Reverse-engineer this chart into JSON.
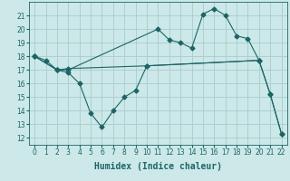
{
  "xlabel": "Humidex (Indice chaleur)",
  "bg_color": "#cce8e8",
  "grid_color": "#aacccc",
  "line_color": "#1a6666",
  "xlim": [
    -0.5,
    22.5
  ],
  "ylim": [
    11.5,
    22.0
  ],
  "xticks": [
    0,
    1,
    2,
    3,
    4,
    5,
    6,
    7,
    8,
    9,
    10,
    11,
    12,
    13,
    14,
    15,
    16,
    17,
    18,
    19,
    20,
    21,
    22
  ],
  "yticks": [
    12,
    13,
    14,
    15,
    16,
    17,
    18,
    19,
    20,
    21
  ],
  "line1_x": [
    0,
    1,
    2,
    3,
    11,
    12,
    13,
    14,
    15,
    16,
    17,
    18,
    19,
    20,
    21,
    22
  ],
  "line1_y": [
    18.0,
    17.7,
    17.0,
    17.0,
    20.0,
    19.2,
    19.0,
    18.6,
    21.1,
    21.5,
    21.0,
    19.5,
    19.3,
    17.7,
    15.2,
    12.3
  ],
  "line2_x": [
    0,
    2,
    3,
    10,
    20
  ],
  "line2_y": [
    18.0,
    17.0,
    17.1,
    17.3,
    17.7
  ],
  "line3_x": [
    0,
    2,
    3,
    4,
    5,
    6,
    7,
    8,
    9,
    10,
    20,
    21,
    22
  ],
  "line3_y": [
    18.0,
    17.0,
    16.8,
    16.0,
    13.8,
    12.8,
    14.0,
    15.0,
    15.5,
    17.3,
    17.7,
    15.2,
    12.3
  ],
  "marker": "D",
  "markersize": 2.5,
  "linewidth": 0.8,
  "xlabel_fontsize": 7,
  "tick_fontsize": 5.5
}
